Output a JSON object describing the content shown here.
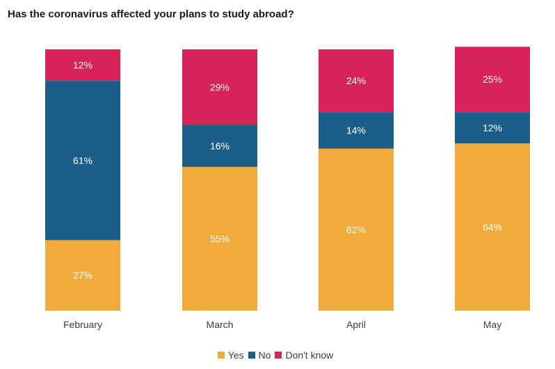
{
  "chart_data": {
    "type": "bar",
    "stacked": true,
    "title": "Has the coronavirus affected your plans to study abroad?",
    "categories": [
      "February",
      "March",
      "April",
      "May"
    ],
    "series": [
      {
        "name": "Yes",
        "color": "#f0ab3c",
        "values": [
          27,
          55,
          62,
          64
        ],
        "labels": [
          "27%",
          "55%",
          "62%",
          "64%"
        ]
      },
      {
        "name": "No",
        "color": "#1b5e89",
        "values": [
          61,
          16,
          14,
          12
        ],
        "labels": [
          "61%",
          "16%",
          "14%",
          "12%"
        ]
      },
      {
        "name": "Don't know",
        "color": "#d8235a",
        "values": [
          12,
          29,
          24,
          25
        ],
        "labels": [
          "12%",
          "29%",
          "24%",
          "25%"
        ]
      }
    ],
    "ylim": [
      0,
      100
    ],
    "grid": false,
    "legend_position": "bottom-center"
  }
}
